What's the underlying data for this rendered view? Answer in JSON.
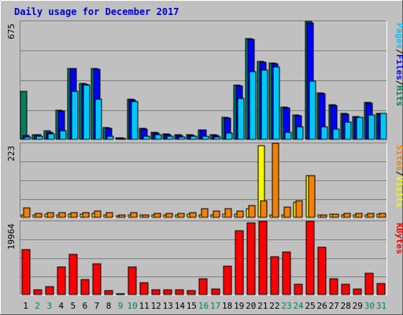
{
  "colors": {
    "background": "#c0c0c0",
    "title": "#0000cc",
    "hits": "#00805c",
    "files": "#0000ff",
    "pages": "#00c8f8",
    "visits": "#f8f800",
    "sites": "#f88000",
    "kbytes": "#ff0000",
    "weekend_day": "#00805c",
    "weekday": "#000000"
  },
  "chart_data": {
    "type": "bar",
    "title": "Daily usage for December 2017",
    "categories": [
      "1",
      "2",
      "3",
      "4",
      "5",
      "6",
      "7",
      "8",
      "9",
      "10",
      "11",
      "12",
      "13",
      "14",
      "15",
      "16",
      "17",
      "18",
      "19",
      "20",
      "21",
      "22",
      "23",
      "24",
      "25",
      "26",
      "27",
      "28",
      "29",
      "30",
      "31"
    ],
    "weekend_days": [
      "2",
      "3",
      "9",
      "10",
      "16",
      "17",
      "23",
      "24",
      "30",
      "31"
    ],
    "panels": [
      {
        "id": "hits-files-pages",
        "ymax_label": "675",
        "ymax": 675,
        "legend": [
          "Pages",
          "/",
          "Files",
          "/",
          "Hits"
        ],
        "series": [
          {
            "name": "Hits",
            "values": [
              275,
              28,
              50,
              165,
              405,
              320,
              405,
              68,
              8,
              230,
              62,
              42,
              32,
              25,
              25,
              55,
              25,
              125,
              310,
              575,
              445,
              435,
              185,
              140,
              675,
              265,
              200,
              150,
              130,
              210,
              150
            ]
          },
          {
            "name": "Files",
            "values": [
              22,
              25,
              42,
              160,
              405,
              315,
              400,
              65,
              8,
              225,
              58,
              38,
              28,
              22,
              22,
              52,
              22,
              120,
              305,
              570,
              440,
              430,
              180,
              135,
              665,
              260,
              195,
              145,
              125,
              205,
              145
            ]
          },
          {
            "name": "Pages",
            "values": [
              15,
              18,
              30,
              50,
              275,
              310,
              230,
              18,
              5,
              215,
              18,
              25,
              20,
              15,
              18,
              18,
              15,
              35,
              235,
              385,
              395,
              415,
              40,
              70,
              335,
              70,
              60,
              100,
              125,
              140,
              150
            ]
          }
        ]
      },
      {
        "id": "visits-sites",
        "ymax_label": "223",
        "ymax": 223,
        "legend": [
          "Sites",
          "/",
          "Visits"
        ],
        "series": [
          {
            "name": "Visits",
            "values": [
              8,
              8,
              10,
              8,
              10,
              10,
              12,
              8,
              5,
              8,
              8,
              8,
              8,
              8,
              10,
              8,
              8,
              10,
              10,
              25,
              215,
              8,
              8,
              45,
              125,
              8,
              10,
              8,
              8,
              8,
              10
            ]
          },
          {
            "name": "Sites",
            "values": [
              28,
              12,
              15,
              15,
              15,
              15,
              18,
              15,
              8,
              15,
              8,
              12,
              12,
              12,
              15,
              25,
              18,
              25,
              20,
              35,
              50,
              223,
              30,
              50,
              125,
              8,
              10,
              12,
              12,
              12,
              12
            ]
          }
        ]
      },
      {
        "id": "kbytes",
        "ymax_label": "19964",
        "ymax": 19964,
        "legend": [
          "KBytes"
        ],
        "series": [
          {
            "name": "KBytes",
            "values": [
              12300,
              1200,
              2200,
              7600,
              11000,
              4100,
              8400,
              1100,
              200,
              7600,
              3300,
              1300,
              1200,
              1300,
              1100,
              4300,
              1400,
              7700,
              17400,
              19500,
              20100,
              10300,
              11600,
              2700,
              20000,
              12900,
              4300,
              2700,
              1400,
              5700,
              3100
            ]
          }
        ]
      }
    ]
  }
}
